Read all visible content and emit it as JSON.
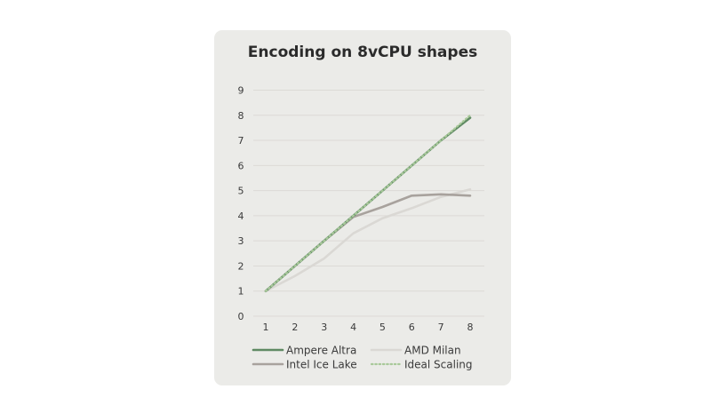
{
  "chart_data": {
    "type": "line",
    "title": "Encoding on 8vCPU shapes",
    "xlabel": "",
    "ylabel": "",
    "x": [
      1,
      2,
      3,
      4,
      5,
      6,
      7,
      8
    ],
    "xlim": [
      1,
      8
    ],
    "ylim": [
      0,
      9
    ],
    "yticks": [
      0,
      1,
      2,
      3,
      4,
      5,
      6,
      7,
      8,
      9
    ],
    "xticks": [
      1,
      2,
      3,
      4,
      5,
      6,
      7,
      8
    ],
    "grid": "horizontal",
    "legend_position": "bottom",
    "series": [
      {
        "name": "Ampere Altra",
        "values": [
          1,
          2,
          3,
          4,
          5,
          6,
          7,
          7.9
        ],
        "color": "#5f8a63",
        "style": "solid"
      },
      {
        "name": "AMD Milan",
        "values": [
          1,
          1.6,
          2.3,
          3.3,
          3.9,
          4.3,
          4.75,
          5.05
        ],
        "color": "#dad8d4",
        "style": "solid"
      },
      {
        "name": "Intel Ice Lake",
        "values": [
          1,
          2,
          3,
          3.95,
          4.35,
          4.8,
          4.85,
          4.8
        ],
        "color": "#a8a29d",
        "style": "solid"
      },
      {
        "name": "Ideal Scaling",
        "values": [
          1,
          2,
          3,
          4,
          5,
          6,
          7,
          8
        ],
        "color": "#a9c99a",
        "style": "dotted"
      }
    ]
  }
}
